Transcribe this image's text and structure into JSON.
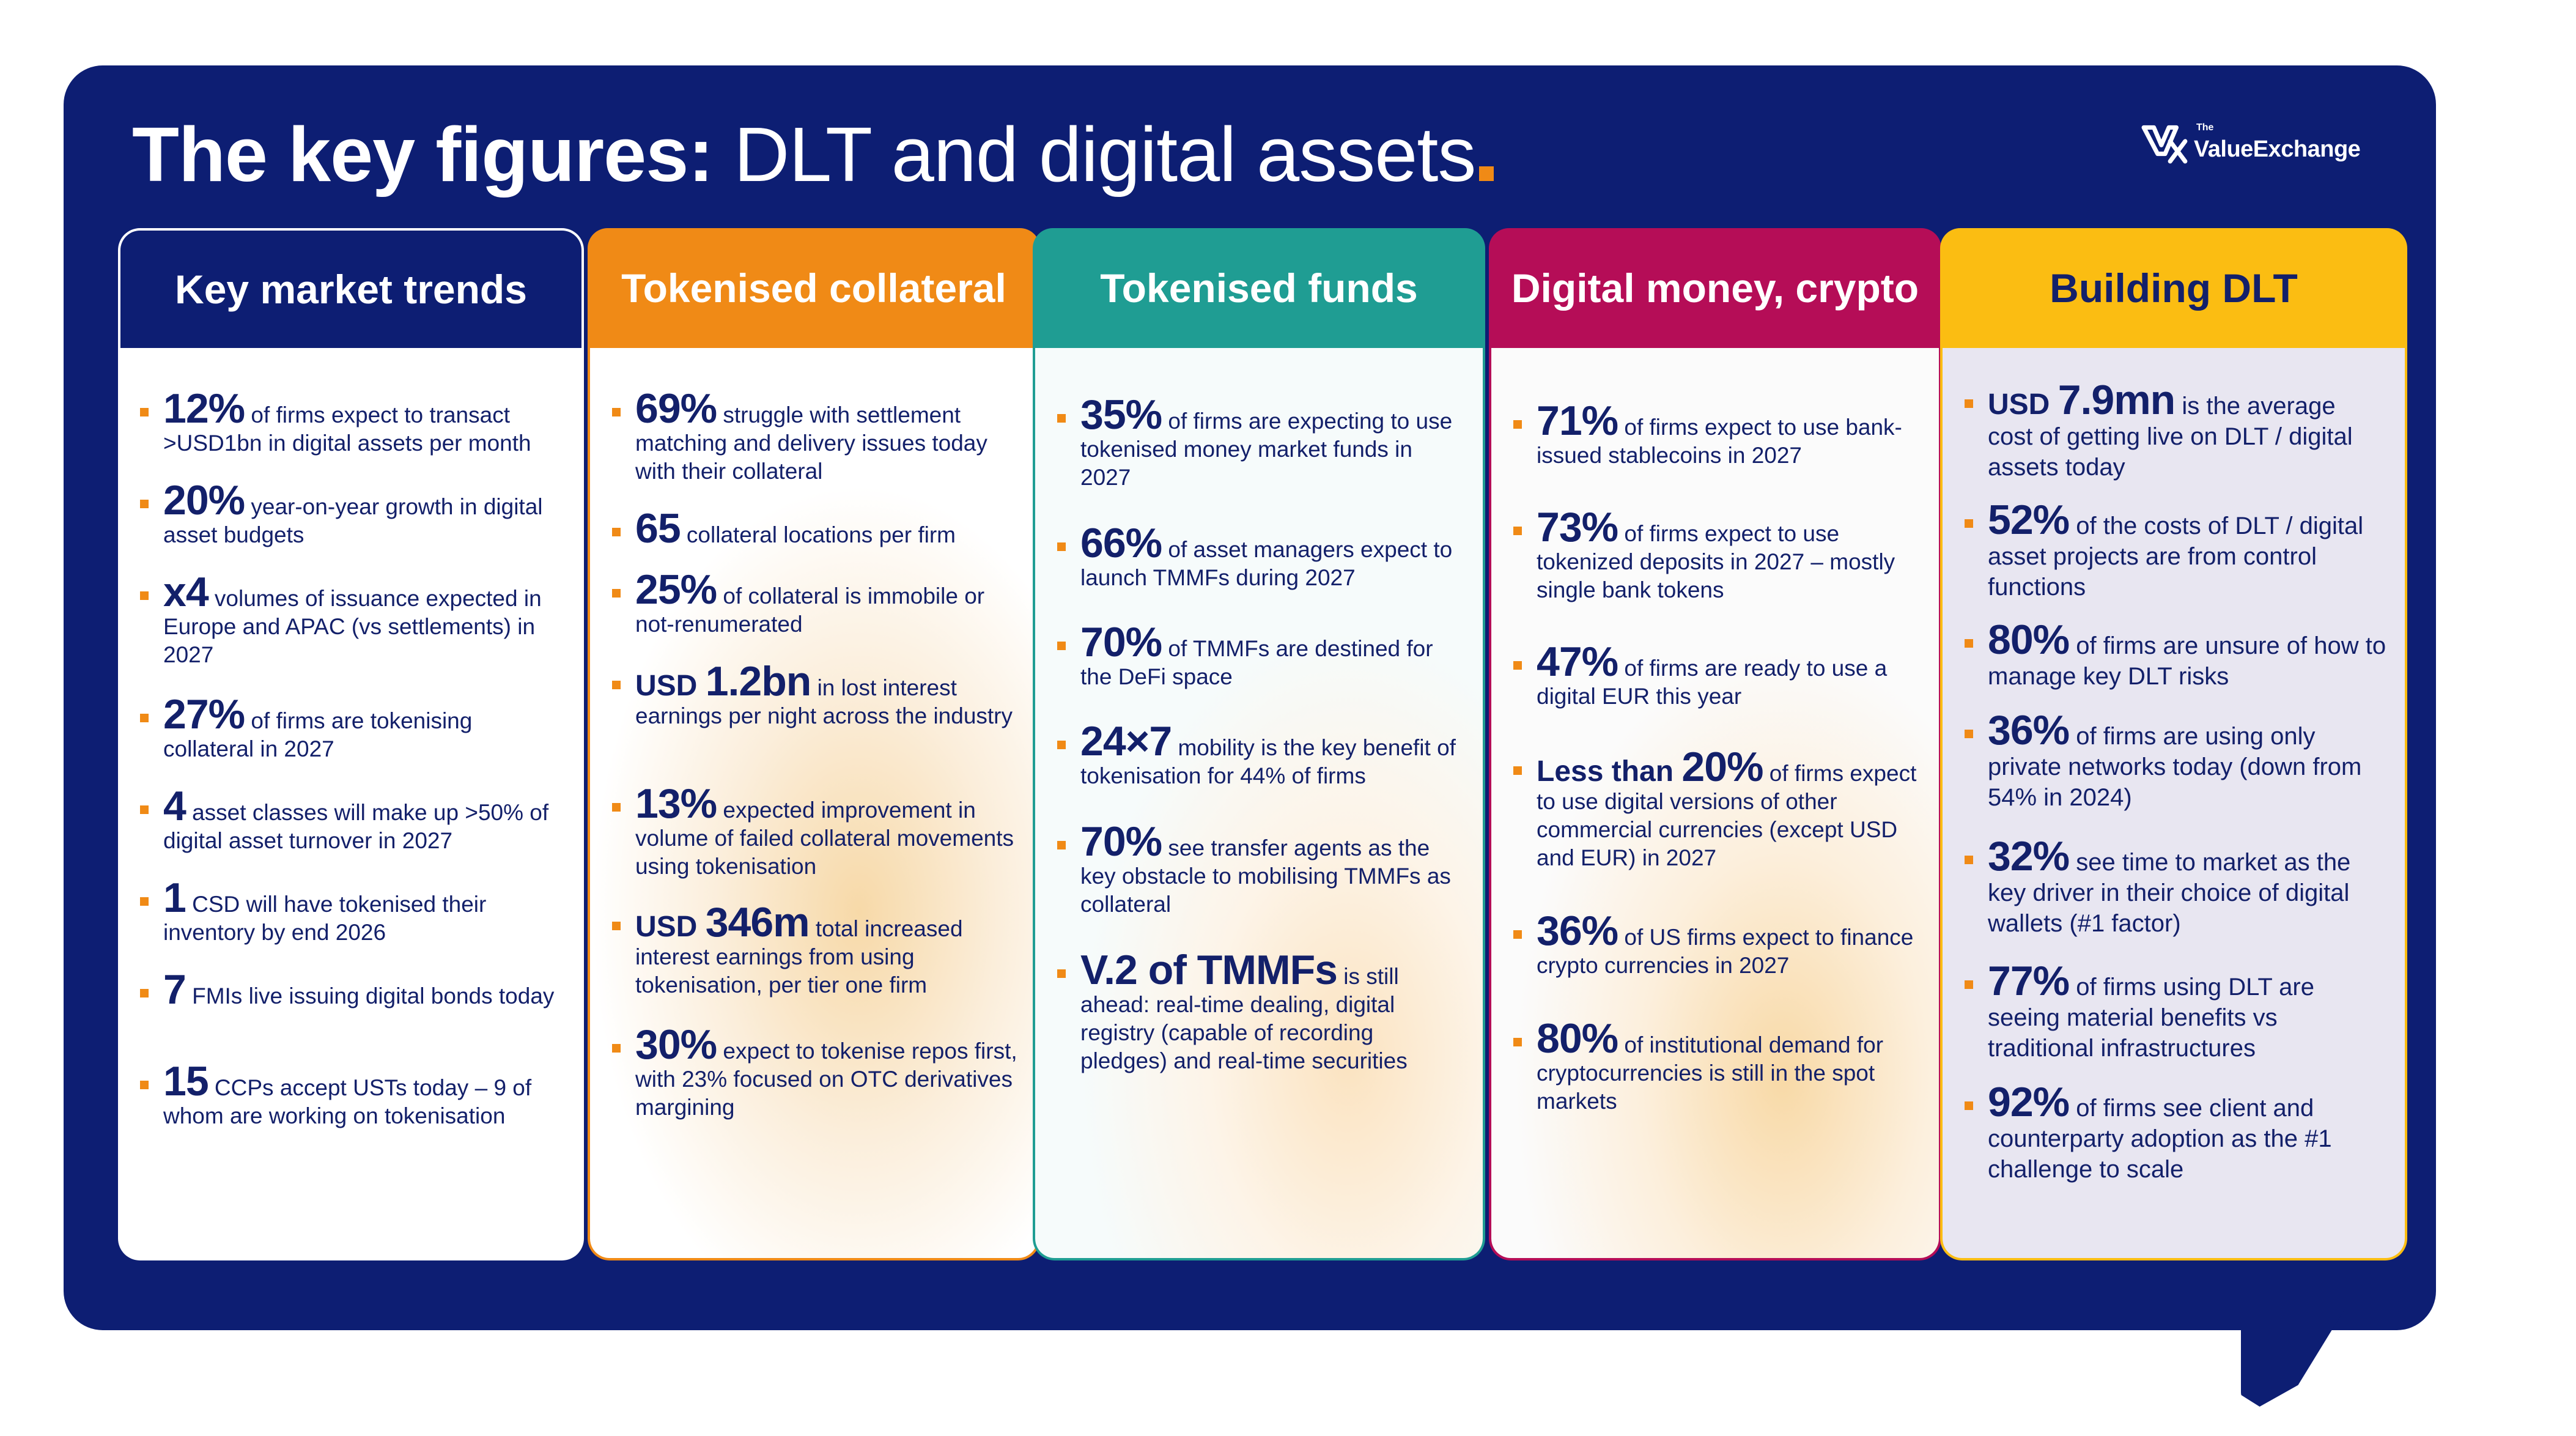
{
  "header": {
    "title_bold": "The key figures:",
    "title_light": " DLT and digital assets",
    "logo_small": "The",
    "logo_name": "ValueExchange"
  },
  "columns": [
    {
      "title": "Key market trends",
      "items": [
        {
          "big": "12%",
          "text": " of firms  expect to transact >USD1bn in digital assets per month"
        },
        {
          "big": "20%",
          "text": " year-on-year growth in digital asset budgets"
        },
        {
          "big": "x4",
          "text": " volumes of issuance expected in Europe and APAC (vs settlements) in 2027"
        },
        {
          "big": "27%",
          "text": " of firms are tokenising collateral in 2027"
        },
        {
          "big": "4",
          "text": " asset classes will make up >50% of digital asset turnover in 2027"
        },
        {
          "big": "1",
          "text": " CSD will have tokenised their inventory by end 2026"
        },
        {
          "big": "7",
          "text": " FMIs live issuing digital bonds today"
        },
        {
          "big": "15",
          "text": " CCPs accept USTs today – 9 of whom are working on tokenisation"
        }
      ]
    },
    {
      "title": "Tokenised collateral",
      "items": [
        {
          "big": "69%",
          "text": " struggle with settlement matching and delivery issues today with their collateral"
        },
        {
          "big": "65",
          "text": " collateral locations per firm"
        },
        {
          "big": "25%",
          "text": " of collateral is immobile or not-renumerated"
        },
        {
          "pre": "USD ",
          "big": "1.2bn",
          "text": " in lost interest earnings per night across the industry"
        },
        {
          "big": "13%",
          "text": " expected improvement in volume of failed collateral movements using tokenisation"
        },
        {
          "pre": "USD ",
          "big": "346m",
          "text": " total increased interest earnings from using tokenisation, per tier one firm"
        },
        {
          "big": "30%",
          "text": " expect to tokenise repos first, with 23% focused on OTC derivatives margining"
        }
      ]
    },
    {
      "title": "Tokenised funds",
      "items": [
        {
          "big": "35%",
          "text": " of firms are expecting to use tokenised money market funds in 2027"
        },
        {
          "big": "66%",
          "text": " of asset managers expect to launch TMMFs during 2027"
        },
        {
          "big": "70%",
          "text": " of TMMFs are destined for the DeFi space"
        },
        {
          "big": "24×7",
          "text": " mobility is the key benefit of tokenisation  for 44% of firms"
        },
        {
          "big": "70%",
          "text": " see transfer agents as the key obstacle to mobilising TMMFs as collateral"
        },
        {
          "big": "V.2 of TMMFs",
          "text": " is still ahead: real-time dealing, digital registry (capable of recording pledges) and real-time securities"
        }
      ]
    },
    {
      "title": "Digital money, crypto",
      "items": [
        {
          "big": "71%",
          "text": " of firms expect to use bank-issued stablecoins in 2027"
        },
        {
          "big": "73%",
          "text": " of firms expect to use tokenized deposits in 2027 – mostly single bank tokens"
        },
        {
          "big": "47%",
          "text": " of firms are ready to use a digital EUR this year"
        },
        {
          "pre": "Less than ",
          "big": "20%",
          "text": " of firms expect to use digital versions of other commercial currencies (except USD and EUR) in 2027"
        },
        {
          "big": "36%",
          "text": " of US firms expect to finance crypto currencies in 2027"
        },
        {
          "big": "80%",
          "text": " of institutional demand for cryptocurrencies is still in the spot markets"
        }
      ]
    },
    {
      "title": "Building DLT",
      "items": [
        {
          "pre": "USD ",
          "big": "7.9mn",
          "text": " is the average cost of getting live on DLT / digital assets today"
        },
        {
          "big": "52%",
          "text": " of the costs of DLT / digital asset projects are from control functions"
        },
        {
          "big": "80%",
          "text": " of firms are unsure of how to manage key DLT risks"
        },
        {
          "big": "36%",
          "text": " of firms are using only private networks today (down from 54% in 2024)"
        },
        {
          "big": "32%",
          "text": " see time to market as the key driver in their choice of digital wallets (#1 factor)"
        },
        {
          "big": "77%",
          "text": " of firms using DLT are seeing material benefits vs traditional infrastructures"
        },
        {
          "big": "92%",
          "text": " of firms see client and counterparty adoption as the #1 challenge to scale"
        }
      ]
    }
  ]
}
